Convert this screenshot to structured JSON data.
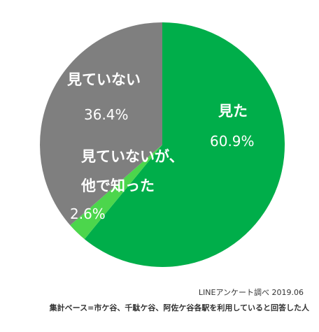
{
  "chart_data": {
    "type": "pie",
    "title": "",
    "slices": [
      {
        "label": "見た",
        "value": 60.9,
        "value_label": "60.9%",
        "color": "#00AE4A"
      },
      {
        "label": "見ていないが、他で知った",
        "value": 2.6,
        "value_label": "2.6%",
        "color": "#4CD64C"
      },
      {
        "label": "見ていない",
        "value": 36.4,
        "value_label": "36.4%",
        "color": "#7F7F7F"
      }
    ]
  },
  "labels": {
    "seen": "見た",
    "seen_pct": "60.9%",
    "knew_line1": "見ていないが、",
    "knew_line2": "他で知った",
    "knew_pct": "2.6%",
    "notseen": "見ていない",
    "notseen_pct": "36.4%"
  },
  "footer": {
    "source": "LINEアンケート調べ 2019.06",
    "basis": "集計ベース=市ケ谷、千駄ケ谷、阿佐ケ谷各駅を利用していると回答した人"
  }
}
